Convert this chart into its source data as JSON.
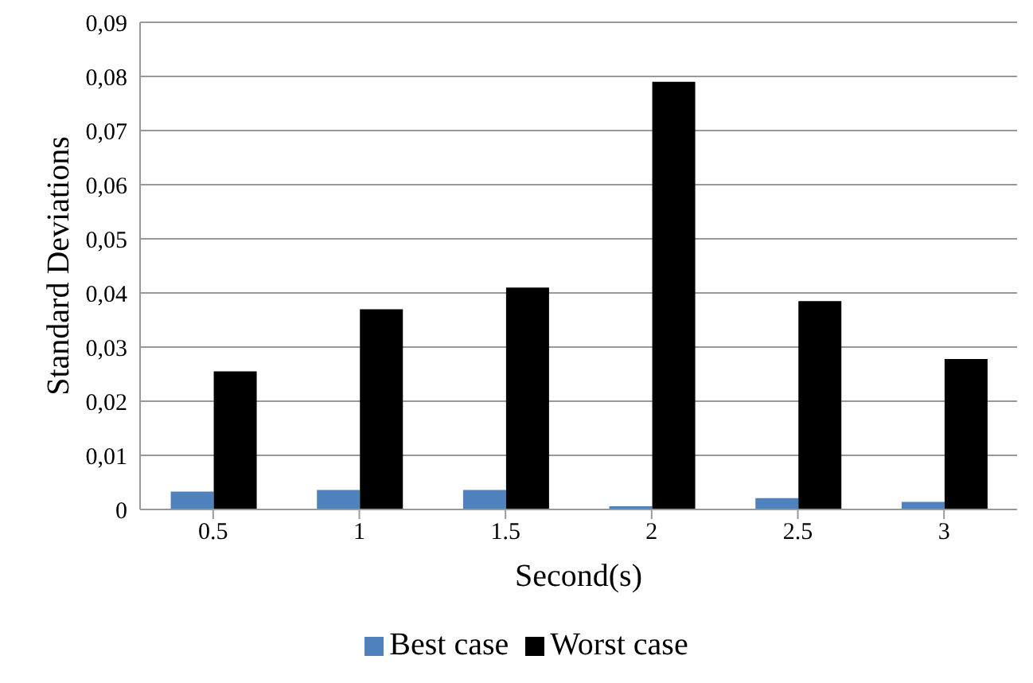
{
  "chart_data": {
    "type": "bar",
    "xlabel": "Second(s)",
    "ylabel": "Standard Deviations",
    "categories": [
      "0.5",
      "1",
      "1.5",
      "2",
      "2.5",
      "3"
    ],
    "series": [
      {
        "name": "Best case",
        "color": "#4f81bd",
        "values": [
          0.0033,
          0.0036,
          0.0036,
          0.0006,
          0.0021,
          0.0014
        ]
      },
      {
        "name": "Worst case",
        "color": "#000000",
        "values": [
          0.0255,
          0.037,
          0.041,
          0.079,
          0.0385,
          0.0278
        ]
      }
    ],
    "ylim": [
      0,
      0.09
    ],
    "yticks": [
      0,
      {
        "value": 0.01,
        "label": "0,01"
      },
      {
        "value": 0.02,
        "label": "0,02"
      },
      {
        "value": 0.03,
        "label": "0,03"
      },
      {
        "value": 0.04,
        "label": "0,04"
      },
      {
        "value": 0.05,
        "label": "0,05"
      },
      {
        "value": 0.06,
        "label": "0,06"
      },
      {
        "value": 0.07,
        "label": "0,07"
      },
      {
        "value": 0.08,
        "label": "0,08"
      },
      {
        "value": 0.09,
        "label": "0,09"
      }
    ],
    "grid": "y",
    "legend": "bottom"
  }
}
